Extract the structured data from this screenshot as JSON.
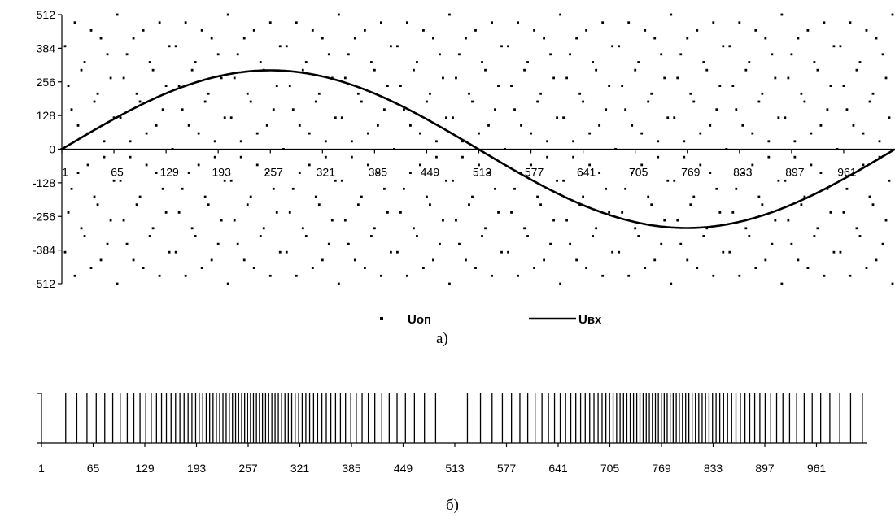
{
  "chart_data": [
    {
      "type": "line",
      "caption": "а)",
      "x_ticks": [
        "1",
        "65",
        "129",
        "193",
        "257",
        "321",
        "385",
        "449",
        "513",
        "577",
        "641",
        "705",
        "769",
        "833",
        "897",
        "961"
      ],
      "y_ticks": [
        "512",
        "384",
        "256",
        "128",
        "0",
        "-128",
        "-256",
        "-384",
        "-512"
      ],
      "xlim": [
        1,
        1024
      ],
      "ylim": [
        -512,
        512
      ],
      "series": [
        {
          "name": "Uоп",
          "style": "points",
          "color": "#000000",
          "period": 34,
          "values": [
            0,
            30,
            60,
            90,
            120,
            151,
            181,
            211,
            241,
            271,
            301,
            331,
            361,
            392,
            422,
            452,
            482,
            512,
            482,
            452,
            422,
            392,
            361,
            331,
            301,
            271,
            241,
            211,
            181,
            151,
            120,
            90,
            60,
            30
          ]
        },
        {
          "name": "Uвх",
          "style": "line",
          "color": "#000000",
          "amplitude": 300,
          "x": [
            1,
            65,
            129,
            193,
            257,
            321,
            385,
            449,
            513,
            577,
            641,
            705,
            769,
            833,
            897,
            961,
            1024
          ],
          "values": [
            0,
            115,
            212,
            277,
            300,
            277,
            212,
            115,
            0,
            -115,
            -212,
            -277,
            -300,
            -277,
            -212,
            -115,
            0
          ]
        }
      ],
      "legend": "bottom-center"
    },
    {
      "type": "table",
      "caption": "б)",
      "x_ticks": [
        "1",
        "65",
        "129",
        "193",
        "257",
        "321",
        "385",
        "449",
        "513",
        "577",
        "641",
        "705",
        "769",
        "833",
        "897",
        "961"
      ],
      "xlim": [
        1,
        1024
      ],
      "pulse_density": [
        0.1,
        0.45,
        0.7,
        0.85,
        0.9,
        0.85,
        0.7,
        0.45,
        0.0,
        0.45,
        0.7,
        0.85,
        0.9,
        0.85,
        0.7,
        0.45,
        0.1
      ]
    }
  ]
}
